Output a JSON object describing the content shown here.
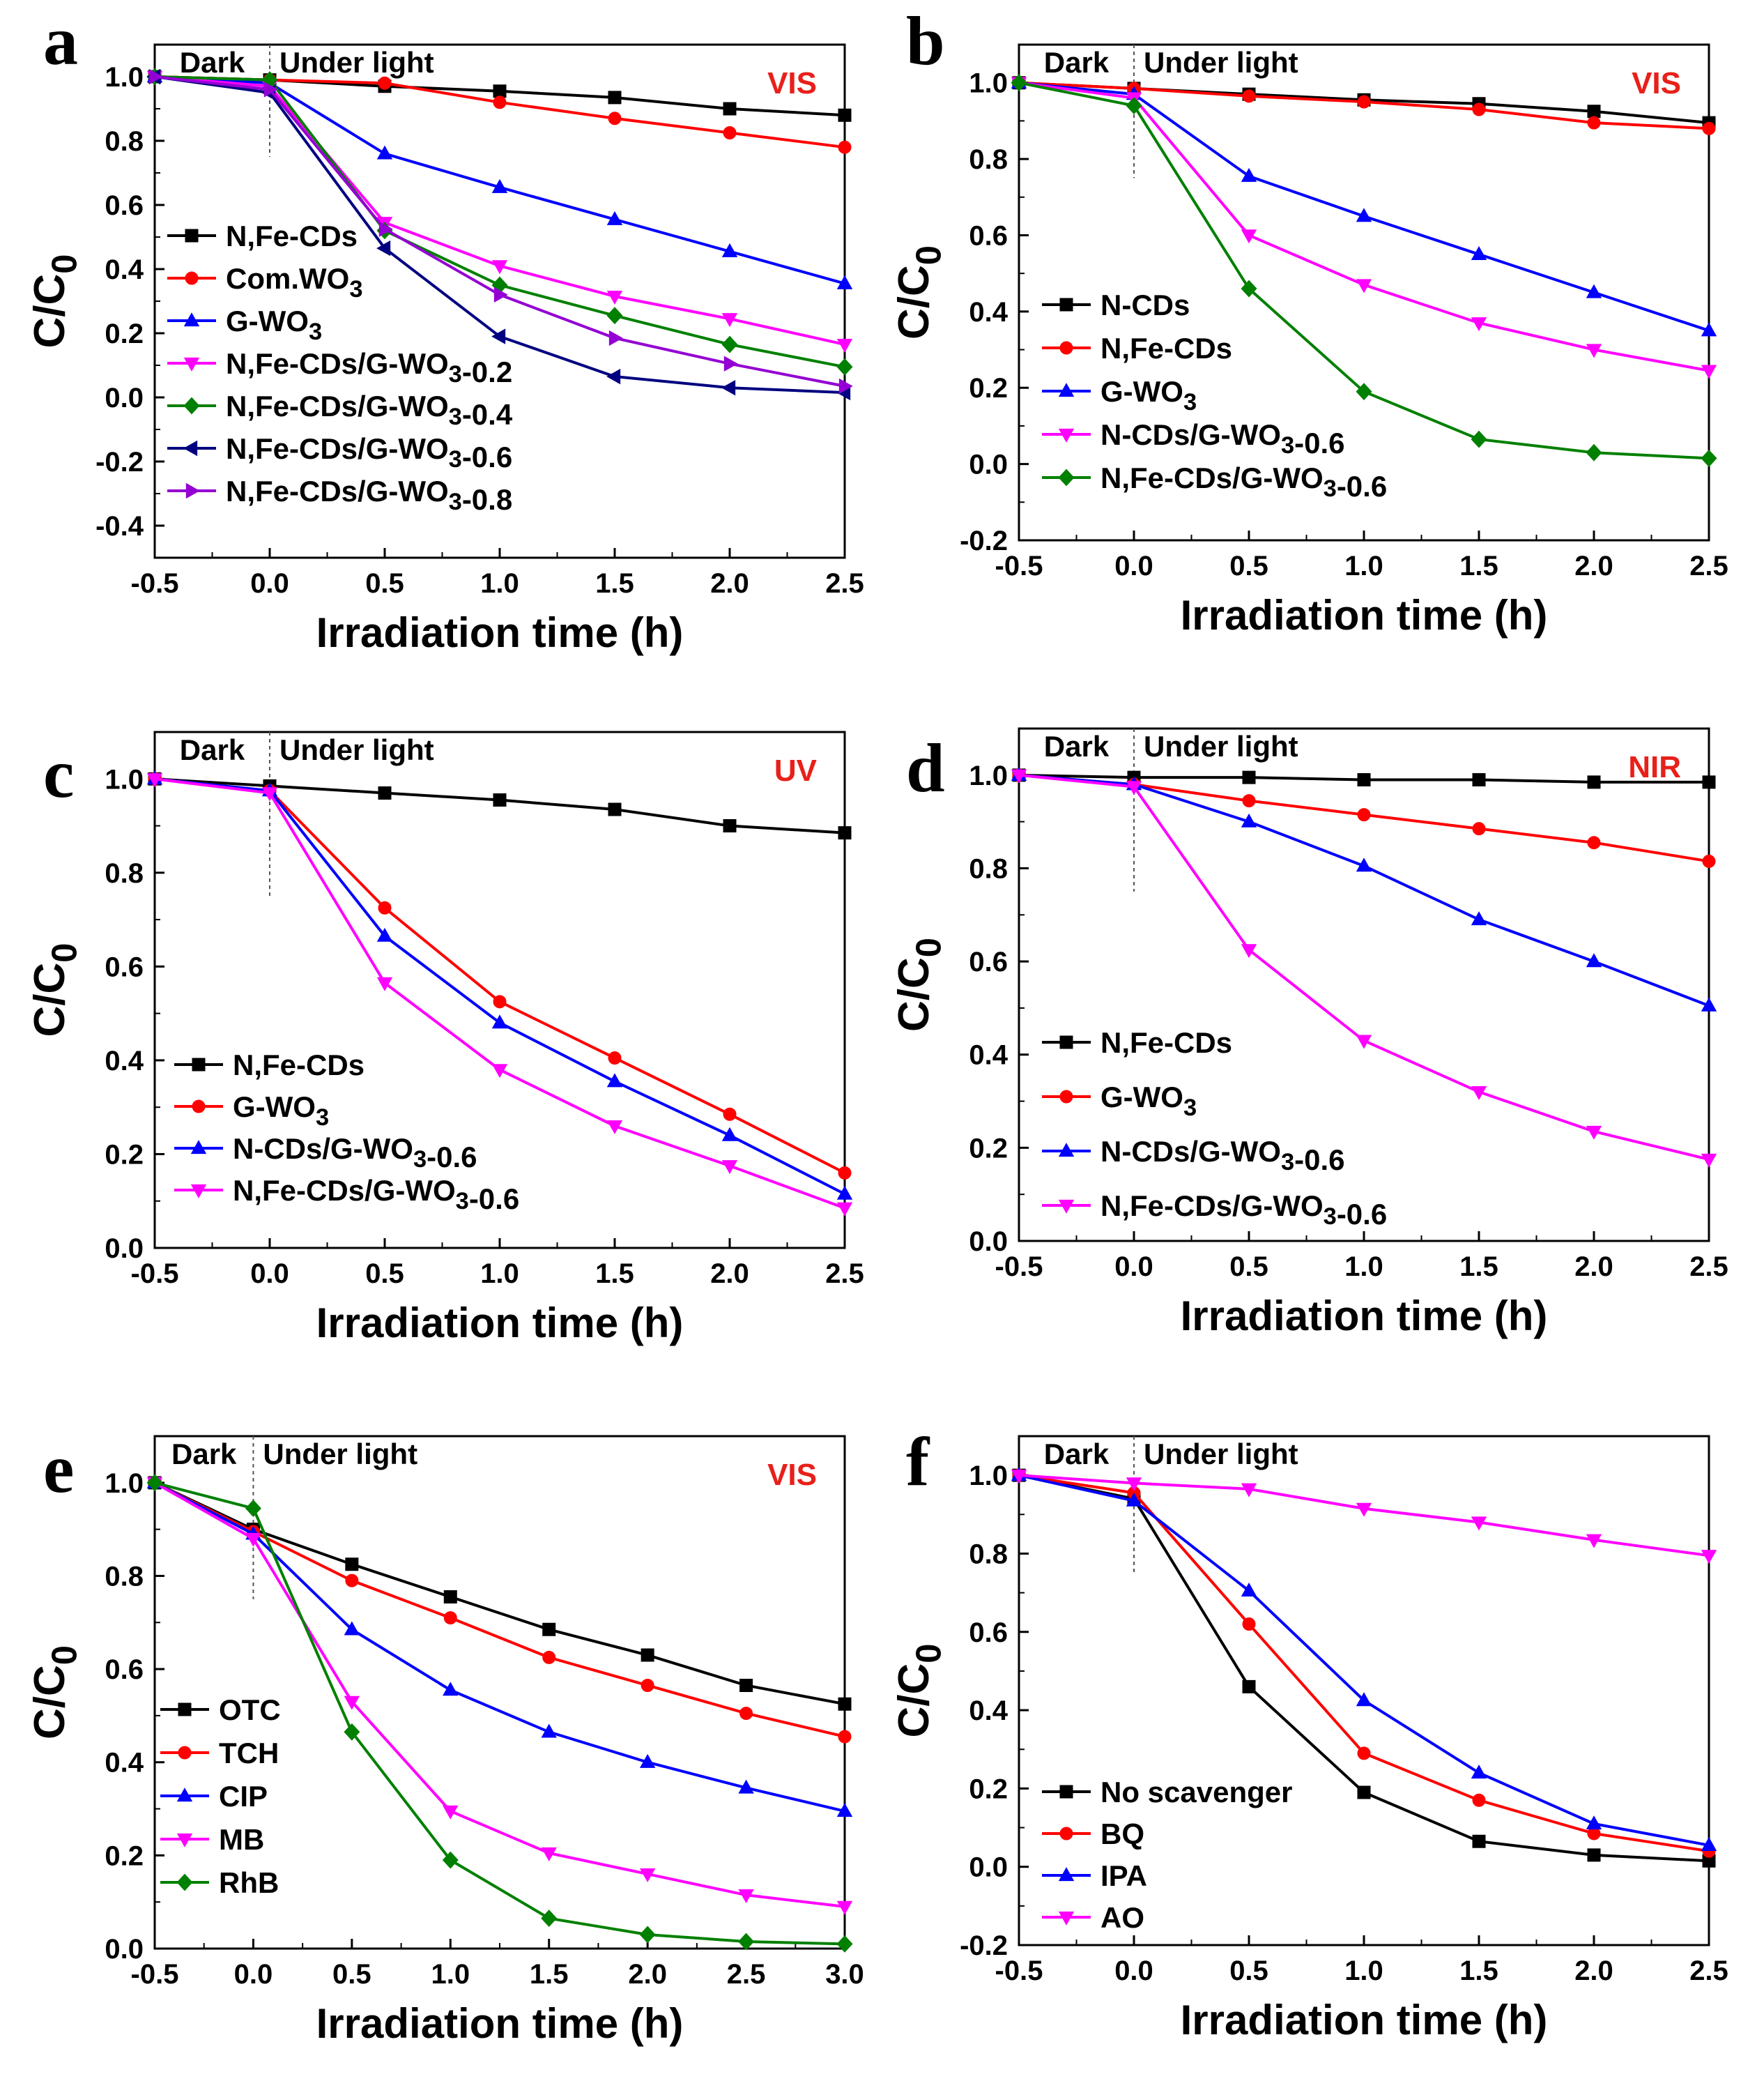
{
  "chart_data": [
    {
      "type": "line",
      "panel_label": "a",
      "light": "VIS",
      "phase_labels": [
        "Dark",
        "Under light"
      ],
      "xlabel": "Irradiation time (h)",
      "ylabel": "C/C0",
      "xlim": [
        -0.5,
        2.5
      ],
      "ylim": [
        -0.5,
        1.1
      ],
      "xticks": [
        "-0.5",
        "0.0",
        "0.5",
        "1.0",
        "1.5",
        "2.0",
        "2.5"
      ],
      "yticks": [
        "-0.4",
        "-0.2",
        "0.0",
        "0.2",
        "0.4",
        "0.6",
        "0.8",
        "1.0"
      ],
      "legend": "left",
      "x": [
        -0.5,
        0.0,
        0.5,
        1.0,
        1.5,
        2.0,
        2.5
      ],
      "series": [
        {
          "name": "N,Fe-CDs",
          "color": "#000000",
          "marker": "square",
          "values": [
            1.0,
            0.99,
            0.97,
            0.955,
            0.935,
            0.9,
            0.88
          ]
        },
        {
          "name": "Com.WO3",
          "color": "#ff0000",
          "marker": "circle",
          "values": [
            1.0,
            0.99,
            0.98,
            0.92,
            0.87,
            0.825,
            0.78
          ]
        },
        {
          "name": "G-WO3",
          "color": "#0000ff",
          "marker": "triangle-up",
          "values": [
            1.0,
            0.98,
            0.76,
            0.655,
            0.555,
            0.455,
            0.355
          ]
        },
        {
          "name": "N,Fe-CDs/G-WO3-0.2",
          "color": "#ff00ff",
          "marker": "triangle-down",
          "values": [
            1.0,
            0.97,
            0.545,
            0.41,
            0.315,
            0.245,
            0.165
          ]
        },
        {
          "name": "N,Fe-CDs/G-WO3-0.4",
          "color": "#008000",
          "marker": "diamond",
          "values": [
            1.0,
            0.99,
            0.52,
            0.35,
            0.255,
            0.165,
            0.095
          ]
        },
        {
          "name": "N,Fe-CDs/G-WO3-0.6",
          "color": "#000080",
          "marker": "triangle-left",
          "values": [
            1.0,
            0.95,
            0.465,
            0.19,
            0.065,
            0.03,
            0.015
          ]
        },
        {
          "name": "N,Fe-CDs/G-WO3-0.8",
          "color": "#9400d3",
          "marker": "triangle-right",
          "values": [
            1.0,
            0.96,
            0.525,
            0.32,
            0.185,
            0.105,
            0.035
          ]
        }
      ]
    },
    {
      "type": "line",
      "panel_label": "b",
      "light": "VIS",
      "phase_labels": [
        "Dark",
        "Under light"
      ],
      "xlabel": "Irradiation time (h)",
      "ylabel": "C/C0",
      "xlim": [
        -0.5,
        2.5
      ],
      "ylim": [
        -0.2,
        1.1
      ],
      "xticks": [
        "-0.5",
        "0.0",
        "0.5",
        "1.0",
        "1.5",
        "2.0",
        "2.5"
      ],
      "yticks": [
        "-0.2",
        "0.0",
        "0.2",
        "0.4",
        "0.6",
        "0.8",
        "1.0"
      ],
      "legend": "left",
      "x": [
        -0.5,
        0.0,
        0.5,
        1.0,
        1.5,
        2.0,
        2.5
      ],
      "series": [
        {
          "name": "N-CDs",
          "color": "#000000",
          "marker": "square",
          "values": [
            1.0,
            0.985,
            0.97,
            0.955,
            0.945,
            0.925,
            0.895
          ]
        },
        {
          "name": "N,Fe-CDs",
          "color": "#ff0000",
          "marker": "circle",
          "values": [
            1.0,
            0.985,
            0.965,
            0.95,
            0.93,
            0.895,
            0.88
          ]
        },
        {
          "name": "G-WO3",
          "color": "#0000ff",
          "marker": "triangle-up",
          "values": [
            1.0,
            0.97,
            0.755,
            0.65,
            0.55,
            0.45,
            0.35
          ]
        },
        {
          "name": "N-CDs/G-WO3-0.6",
          "color": "#ff00ff",
          "marker": "triangle-down",
          "values": [
            1.0,
            0.96,
            0.6,
            0.47,
            0.37,
            0.3,
            0.245
          ]
        },
        {
          "name": "N,Fe-CDs/G-WO3-0.6",
          "color": "#008000",
          "marker": "diamond",
          "values": [
            1.0,
            0.94,
            0.46,
            0.19,
            0.065,
            0.03,
            0.015
          ]
        }
      ]
    },
    {
      "type": "line",
      "panel_label": "c",
      "light": "UV",
      "phase_labels": [
        "Dark",
        "Under light"
      ],
      "xlabel": "Irradiation time (h)",
      "ylabel": "C/C0",
      "xlim": [
        -0.5,
        2.5
      ],
      "ylim": [
        0.0,
        1.1
      ],
      "xticks": [
        "-0.5",
        "0.0",
        "0.5",
        "1.0",
        "1.5",
        "2.0",
        "2.5"
      ],
      "yticks": [
        "0.0",
        "0.2",
        "0.4",
        "0.6",
        "0.8",
        "1.0"
      ],
      "legend": "left",
      "x": [
        -0.5,
        0.0,
        0.5,
        1.0,
        1.5,
        2.0,
        2.5
      ],
      "series": [
        {
          "name": "N,Fe-CDs",
          "color": "#000000",
          "marker": "square",
          "values": [
            1.0,
            0.985,
            0.97,
            0.955,
            0.935,
            0.9,
            0.885
          ]
        },
        {
          "name": "G-WO3",
          "color": "#ff0000",
          "marker": "circle",
          "values": [
            1.0,
            0.975,
            0.725,
            0.525,
            0.405,
            0.285,
            0.16
          ]
        },
        {
          "name": "N-CDs/G-WO3-0.6",
          "color": "#0000ff",
          "marker": "triangle-up",
          "values": [
            1.0,
            0.975,
            0.665,
            0.48,
            0.355,
            0.24,
            0.115
          ]
        },
        {
          "name": "N,Fe-CDs/G-WO3-0.6",
          "color": "#ff00ff",
          "marker": "triangle-down",
          "values": [
            1.0,
            0.97,
            0.565,
            0.38,
            0.26,
            0.175,
            0.085
          ]
        }
      ]
    },
    {
      "type": "line",
      "panel_label": "d",
      "light": "NIR",
      "phase_labels": [
        "Dark",
        "Under light"
      ],
      "xlabel": "Irradiation time (h)",
      "ylabel": "C/C0",
      "xlim": [
        -0.5,
        2.5
      ],
      "ylim": [
        0.0,
        1.1
      ],
      "xticks": [
        "-0.5",
        "0.0",
        "0.5",
        "1.0",
        "1.5",
        "2.0",
        "2.5"
      ],
      "yticks": [
        "0.0",
        "0.2",
        "0.4",
        "0.6",
        "0.8",
        "1.0"
      ],
      "legend": "left",
      "x": [
        -0.5,
        0.0,
        0.5,
        1.0,
        1.5,
        2.0,
        2.5
      ],
      "series": [
        {
          "name": "N,Fe-CDs",
          "color": "#000000",
          "marker": "square",
          "values": [
            1.0,
            0.995,
            0.995,
            0.99,
            0.99,
            0.985,
            0.985
          ]
        },
        {
          "name": "G-WO3",
          "color": "#ff0000",
          "marker": "circle",
          "values": [
            1.0,
            0.98,
            0.945,
            0.915,
            0.885,
            0.855,
            0.815
          ]
        },
        {
          "name": "N-CDs/G-WO3-0.6",
          "color": "#0000ff",
          "marker": "triangle-up",
          "values": [
            1.0,
            0.98,
            0.9,
            0.805,
            0.69,
            0.6,
            0.505
          ]
        },
        {
          "name": "N,Fe-CDs/G-WO3-0.6",
          "color": "#ff00ff",
          "marker": "triangle-down",
          "values": [
            1.0,
            0.975,
            0.625,
            0.43,
            0.32,
            0.235,
            0.175
          ]
        }
      ]
    },
    {
      "type": "line",
      "panel_label": "e",
      "light": "VIS",
      "phase_labels": [
        "Dark",
        "Under light"
      ],
      "xlabel": "Irradiation time (h)",
      "ylabel": "C/C0",
      "xlim": [
        -0.5,
        3.0
      ],
      "ylim": [
        0.0,
        1.1
      ],
      "xticks": [
        "-0.5",
        "0.0",
        "0.5",
        "1.0",
        "1.5",
        "2.0",
        "2.5",
        "3.0"
      ],
      "yticks": [
        "0.0",
        "0.2",
        "0.4",
        "0.6",
        "0.8",
        "1.0"
      ],
      "legend": "left",
      "x": [
        -0.5,
        0.0,
        0.5,
        1.0,
        1.5,
        2.0,
        2.5,
        3.0
      ],
      "series": [
        {
          "name": "OTC",
          "color": "#000000",
          "marker": "square",
          "values": [
            1.0,
            0.9,
            0.825,
            0.755,
            0.685,
            0.63,
            0.565,
            0.525
          ]
        },
        {
          "name": "TCH",
          "color": "#ff0000",
          "marker": "circle",
          "values": [
            1.0,
            0.895,
            0.79,
            0.71,
            0.625,
            0.565,
            0.505,
            0.455
          ]
        },
        {
          "name": "CIP",
          "color": "#0000ff",
          "marker": "triangle-up",
          "values": [
            1.0,
            0.89,
            0.685,
            0.555,
            0.465,
            0.4,
            0.345,
            0.295
          ]
        },
        {
          "name": "MB",
          "color": "#ff00ff",
          "marker": "triangle-down",
          "values": [
            1.0,
            0.88,
            0.53,
            0.295,
            0.205,
            0.16,
            0.115,
            0.09
          ]
        },
        {
          "name": "RhB",
          "color": "#008000",
          "marker": "diamond",
          "values": [
            1.0,
            0.945,
            0.465,
            0.19,
            0.065,
            0.03,
            0.015,
            0.01
          ]
        }
      ]
    },
    {
      "type": "line",
      "panel_label": "f",
      "light": "",
      "phase_labels": [
        "Dark",
        "Under light"
      ],
      "xlabel": "Irradiation time (h)",
      "ylabel": "C/C0",
      "xlim": [
        -0.5,
        2.5
      ],
      "ylim": [
        -0.2,
        1.1
      ],
      "xticks": [
        "-0.5",
        "0.0",
        "0.5",
        "1.0",
        "1.5",
        "2.0",
        "2.5"
      ],
      "yticks": [
        "-0.2",
        "0.0",
        "0.2",
        "0.4",
        "0.6",
        "0.8",
        "1.0"
      ],
      "legend": "left",
      "x": [
        -0.5,
        0.0,
        0.5,
        1.0,
        1.5,
        2.0,
        2.5
      ],
      "series": [
        {
          "name": "No scavenger",
          "color": "#000000",
          "marker": "square",
          "values": [
            1.0,
            0.94,
            0.46,
            0.19,
            0.065,
            0.03,
            0.015
          ]
        },
        {
          "name": "BQ",
          "color": "#ff0000",
          "marker": "circle",
          "values": [
            1.0,
            0.955,
            0.62,
            0.29,
            0.17,
            0.085,
            0.04
          ]
        },
        {
          "name": "IPA",
          "color": "#0000ff",
          "marker": "triangle-up",
          "values": [
            1.0,
            0.935,
            0.705,
            0.425,
            0.24,
            0.11,
            0.055
          ]
        },
        {
          "name": "AO",
          "color": "#ff00ff",
          "marker": "triangle-down",
          "values": [
            1.0,
            0.98,
            0.965,
            0.915,
            0.88,
            0.835,
            0.795
          ]
        }
      ]
    }
  ]
}
